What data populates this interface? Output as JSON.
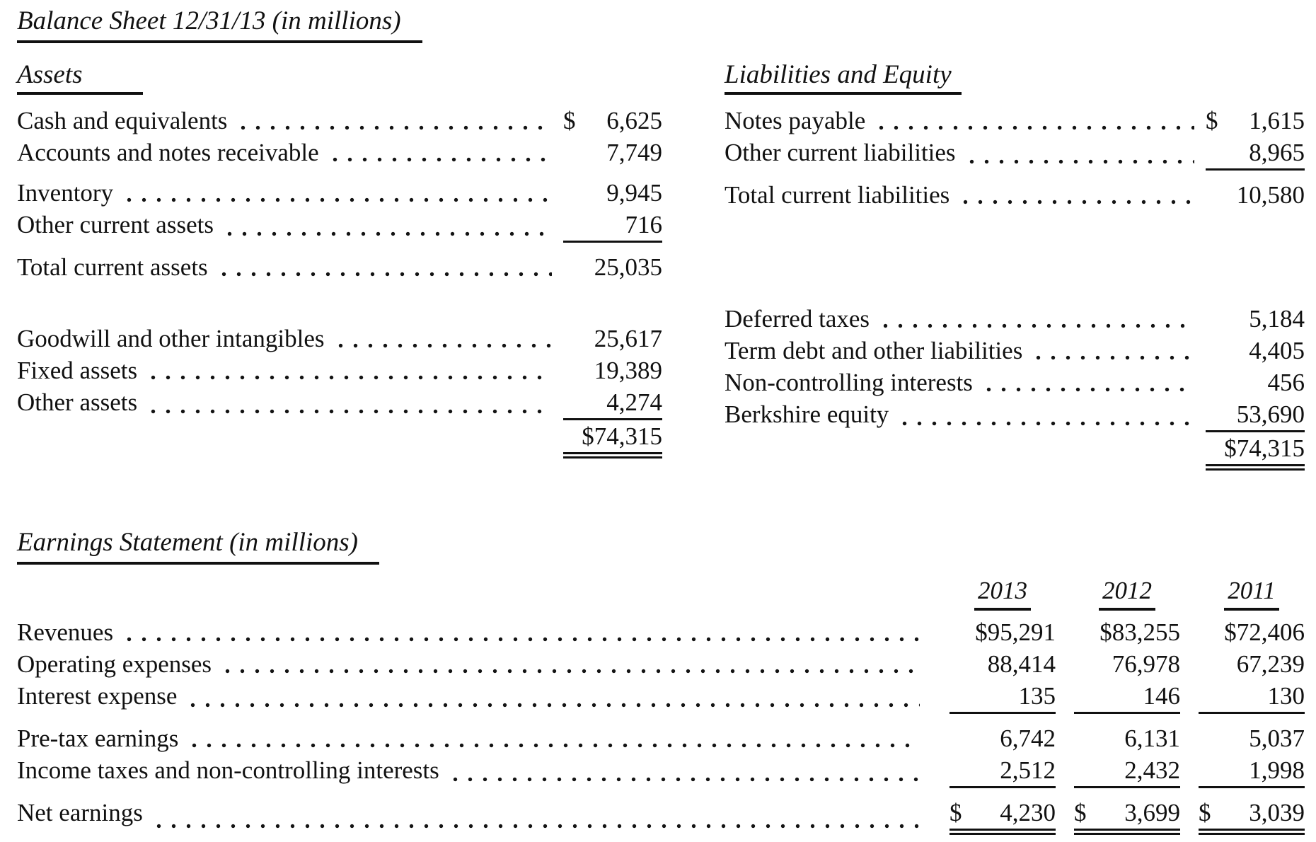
{
  "balance_sheet": {
    "title": "Balance Sheet 12/31/13 (in millions)",
    "assets": {
      "heading": "Assets",
      "rows": [
        {
          "label": "Cash and equivalents",
          "prefix": "$",
          "amount": "6,625"
        },
        {
          "label": "Accounts and notes receivable",
          "prefix": "",
          "amount": "7,749"
        },
        {
          "label": "Inventory",
          "prefix": "",
          "amount": "9,945"
        },
        {
          "label": "Other current assets",
          "prefix": "",
          "amount": "716"
        },
        {
          "label": "Total current assets",
          "prefix": "",
          "amount": "25,035"
        },
        {
          "label": "Goodwill and other intangibles",
          "prefix": "",
          "amount": "25,617"
        },
        {
          "label": "Fixed assets",
          "prefix": "",
          "amount": "19,389"
        },
        {
          "label": "Other assets",
          "prefix": "",
          "amount": "4,274"
        },
        {
          "label": "",
          "prefix": "",
          "amount": "$74,315"
        }
      ]
    },
    "liabilities_equity": {
      "heading": "Liabilities and Equity",
      "rows": [
        {
          "label": "Notes payable",
          "prefix": "$",
          "amount": "1,615"
        },
        {
          "label": "Other current liabilities",
          "prefix": "",
          "amount": "8,965"
        },
        {
          "label": "Total current liabilities",
          "prefix": "",
          "amount": "10,580"
        },
        {
          "label": "Deferred taxes",
          "prefix": "",
          "amount": "5,184"
        },
        {
          "label": "Term debt and other liabilities",
          "prefix": "",
          "amount": "4,405"
        },
        {
          "label": "Non-controlling interests",
          "prefix": "",
          "amount": "456"
        },
        {
          "label": "Berkshire equity",
          "prefix": "",
          "amount": "53,690"
        },
        {
          "label": "",
          "prefix": "",
          "amount": "$74,315"
        }
      ]
    }
  },
  "earnings_statement": {
    "title": "Earnings Statement (in millions)",
    "years": [
      "2013",
      "2012",
      "2011"
    ],
    "rows": [
      {
        "label": "Revenues",
        "prefix": "",
        "values": [
          "$95,291",
          "$83,255",
          "$72,406"
        ]
      },
      {
        "label": "Operating expenses",
        "prefix": "",
        "values": [
          "88,414",
          "76,978",
          "67,239"
        ]
      },
      {
        "label": "Interest expense",
        "prefix": "",
        "values": [
          "135",
          "146",
          "130"
        ]
      },
      {
        "label": "Pre-tax earnings",
        "prefix": "",
        "values": [
          "6,742",
          "6,131",
          "5,037"
        ]
      },
      {
        "label": "Income taxes and non-controlling interests",
        "prefix": "",
        "values": [
          "2,512",
          "2,432",
          "1,998"
        ]
      },
      {
        "label": "Net earnings",
        "prefix": "$",
        "values": [
          "4,230",
          "3,699",
          "3,039"
        ]
      }
    ]
  }
}
